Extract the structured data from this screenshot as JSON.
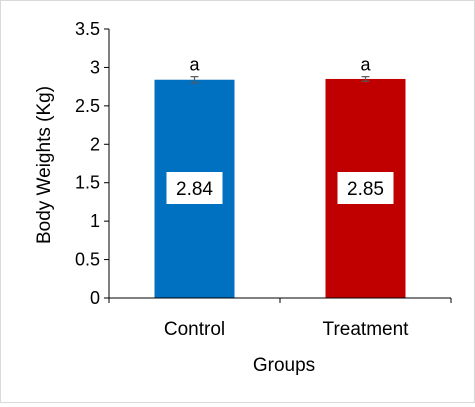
{
  "chart_data": {
    "type": "bar",
    "categories": [
      "Control",
      "Treatment"
    ],
    "values": [
      2.84,
      2.85
    ],
    "errors": [
      0.04,
      0.03
    ],
    "value_labels": [
      "2.84",
      "2.85"
    ],
    "significance_labels": [
      "a",
      "a"
    ],
    "bar_colors": [
      "#0070C0",
      "#C00000"
    ],
    "xlabel": "Groups",
    "ylabel": "Body Weights (Kg)",
    "ylim": [
      0,
      3.5
    ],
    "yticks": [
      "0",
      "0.5",
      "1",
      "1.5",
      "2",
      "2.5",
      "3",
      "3.5"
    ],
    "grid": false,
    "legend": "none"
  }
}
